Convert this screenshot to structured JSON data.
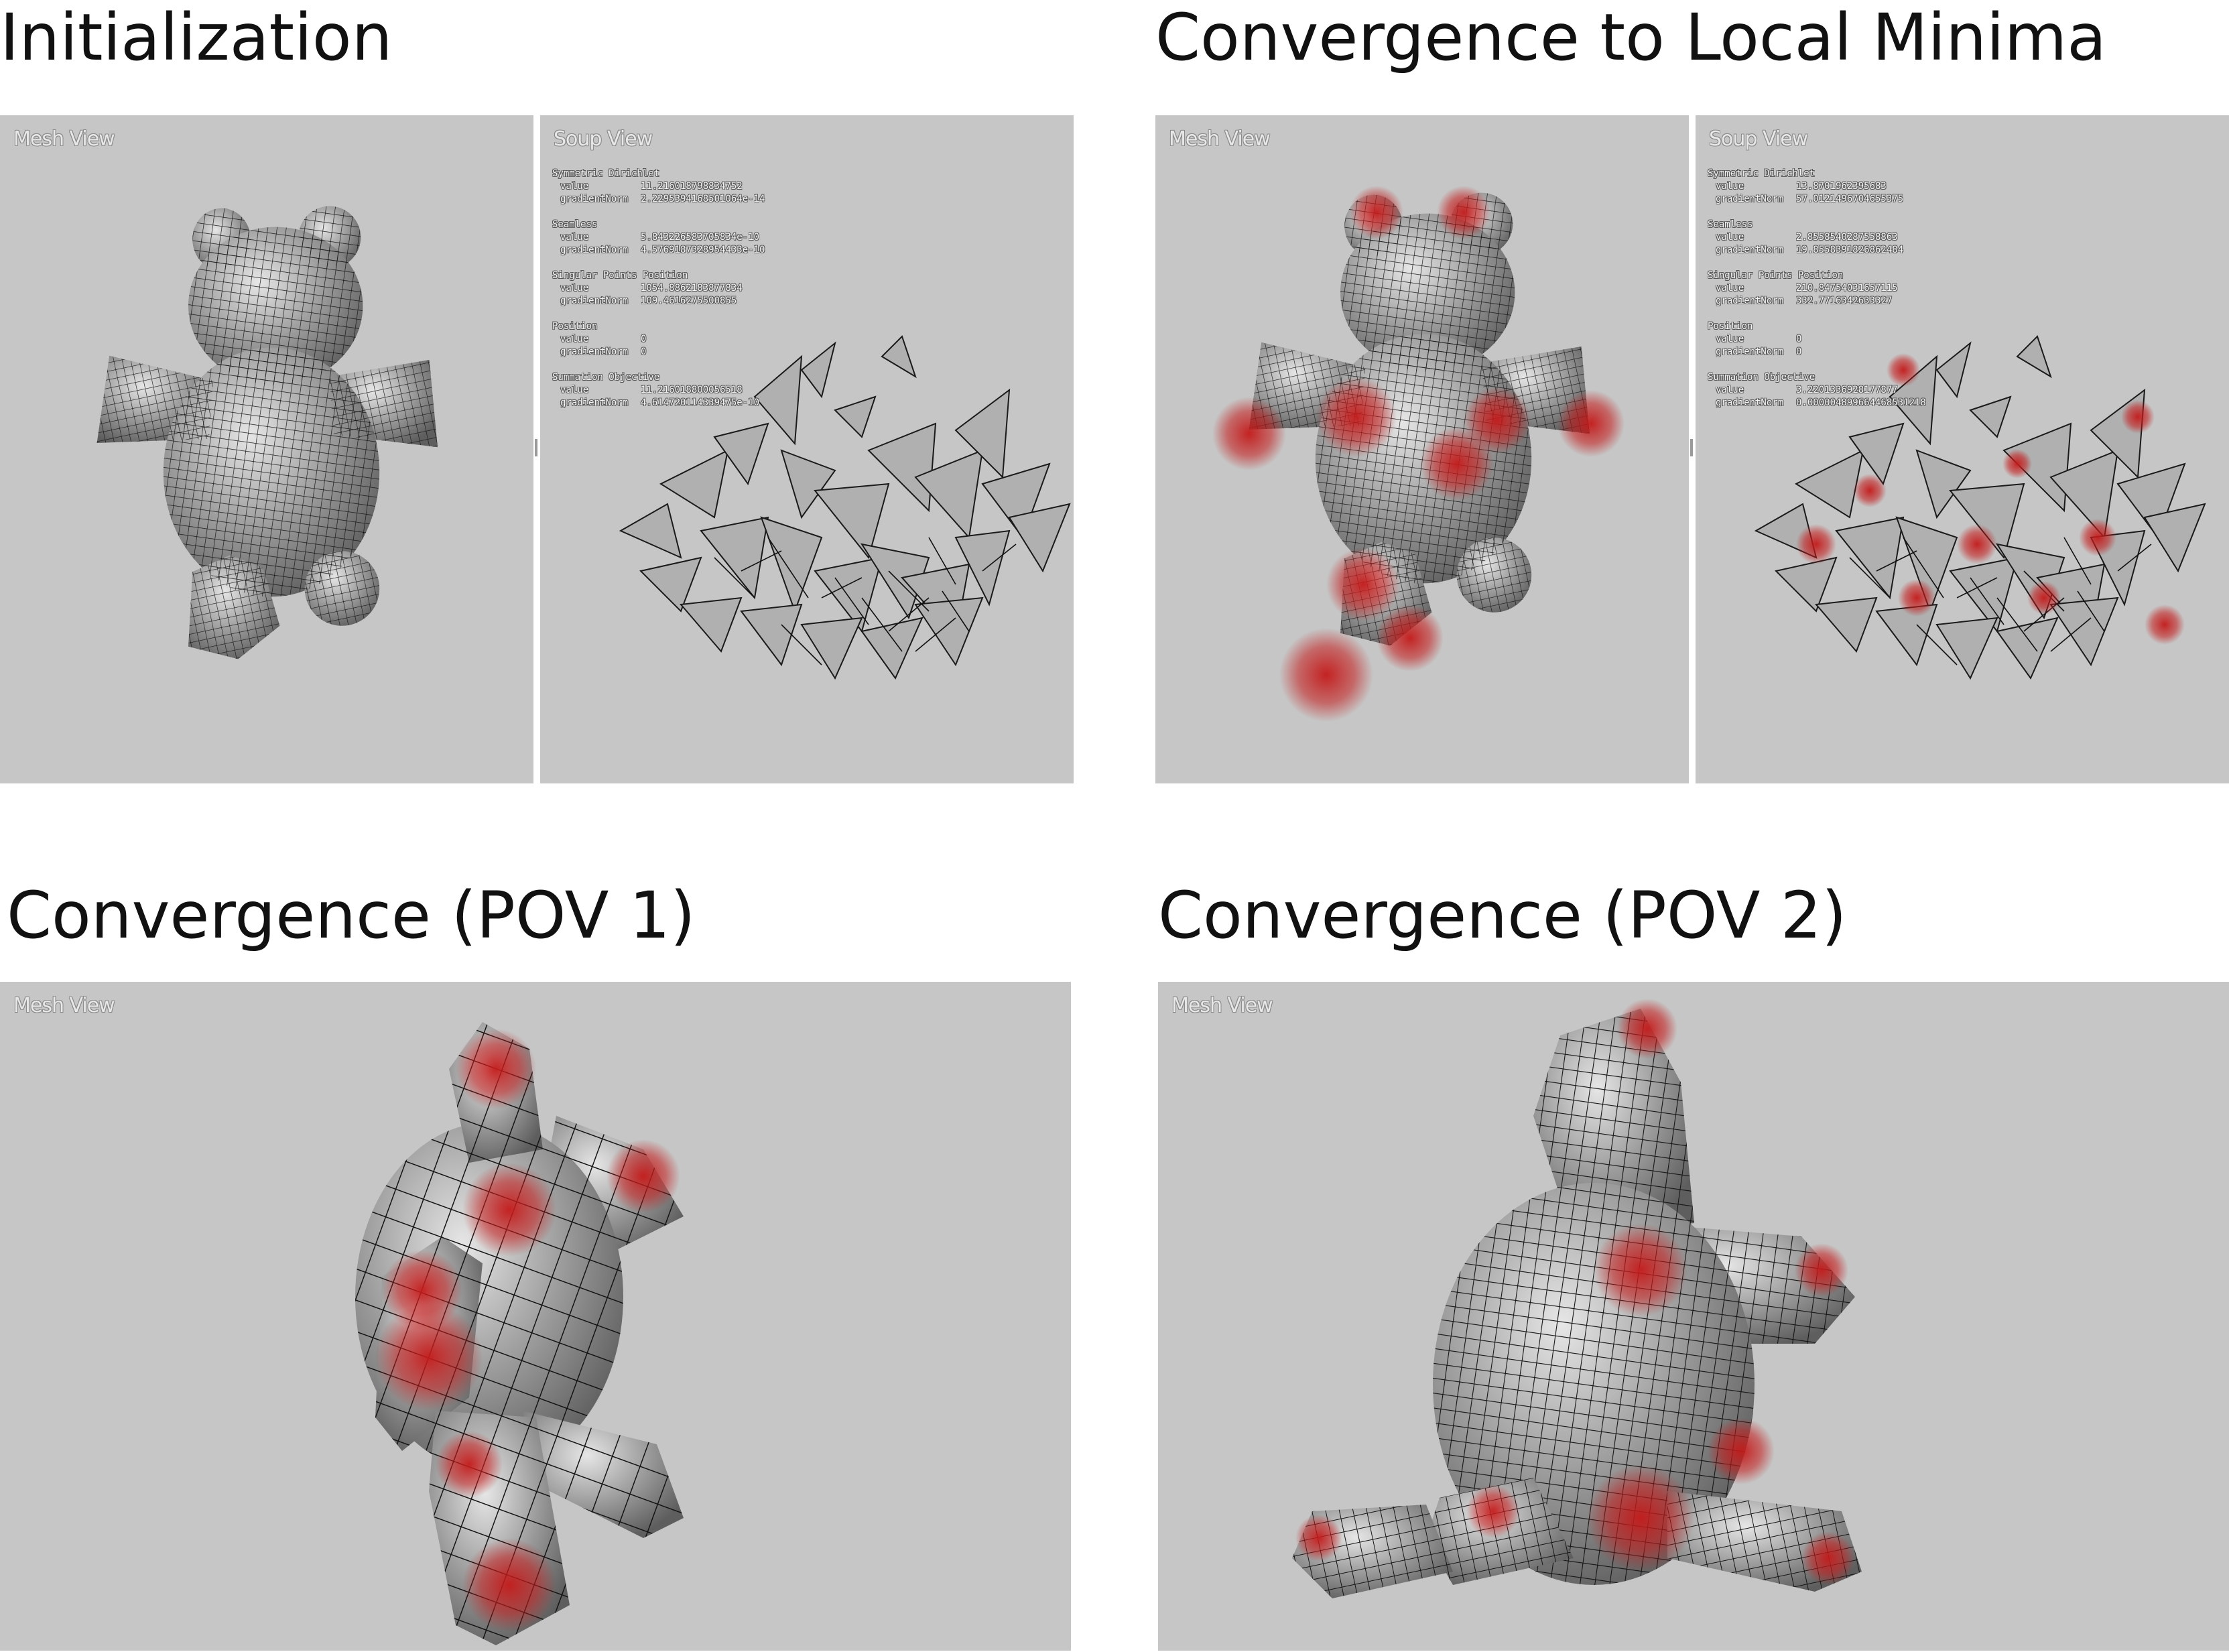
{
  "panels": {
    "init": {
      "title": "Initialization",
      "mesh_label": "Mesh View",
      "soup_label": "Soup View",
      "stats": [
        {
          "name": "Symmetric Dirichlet",
          "value": "11.216018798834752",
          "gradientNorm": "2.2295394168501064e-14"
        },
        {
          "name": "Seamless",
          "value": "5.843226583705834e-10",
          "gradientNorm": "4.5769187328954433e-10"
        },
        {
          "name": "Singular Points Position",
          "value": "1054.8862183877834",
          "gradientNorm": "109.4616275500855"
        },
        {
          "name": "Position",
          "value": "0",
          "gradientNorm": "0"
        },
        {
          "name": "Summation Objective",
          "value": "11.216018800056518",
          "gradientNorm": "4.614720114339475e-10"
        }
      ]
    },
    "local": {
      "title": "Convergence to Local Minima",
      "mesh_label": "Mesh View",
      "soup_label": "Soup View",
      "stats": [
        {
          "name": "Symmetric Dirichlet",
          "value": "13.8701962395683",
          "gradientNorm": "57.0121496704655375"
        },
        {
          "name": "Seamless",
          "value": "2.8558540287558863",
          "gradientNorm": "19.8558391826862484"
        },
        {
          "name": "Singular Points Position",
          "value": "210.84754031657115",
          "gradientNorm": "332.7716342633327"
        },
        {
          "name": "Position",
          "value": "0",
          "gradientNorm": "0"
        },
        {
          "name": "Summation Objective",
          "value": "3.2201336928177877",
          "gradientNorm": "0.000004899664468531218"
        }
      ]
    },
    "pov1": {
      "title": "Convergence (POV 1)",
      "mesh_label": "Mesh View"
    },
    "pov2": {
      "title": "Convergence (POV 2)",
      "mesh_label": "Mesh View"
    }
  },
  "field_labels": {
    "value": "value",
    "gradientNorm": "gradientNorm"
  },
  "colors": {
    "viewport_bg": "#c6c6c6",
    "mesh_gray": "#8d8d8d",
    "highlight_red": "#c41a1a",
    "grid_line": "#111111"
  }
}
